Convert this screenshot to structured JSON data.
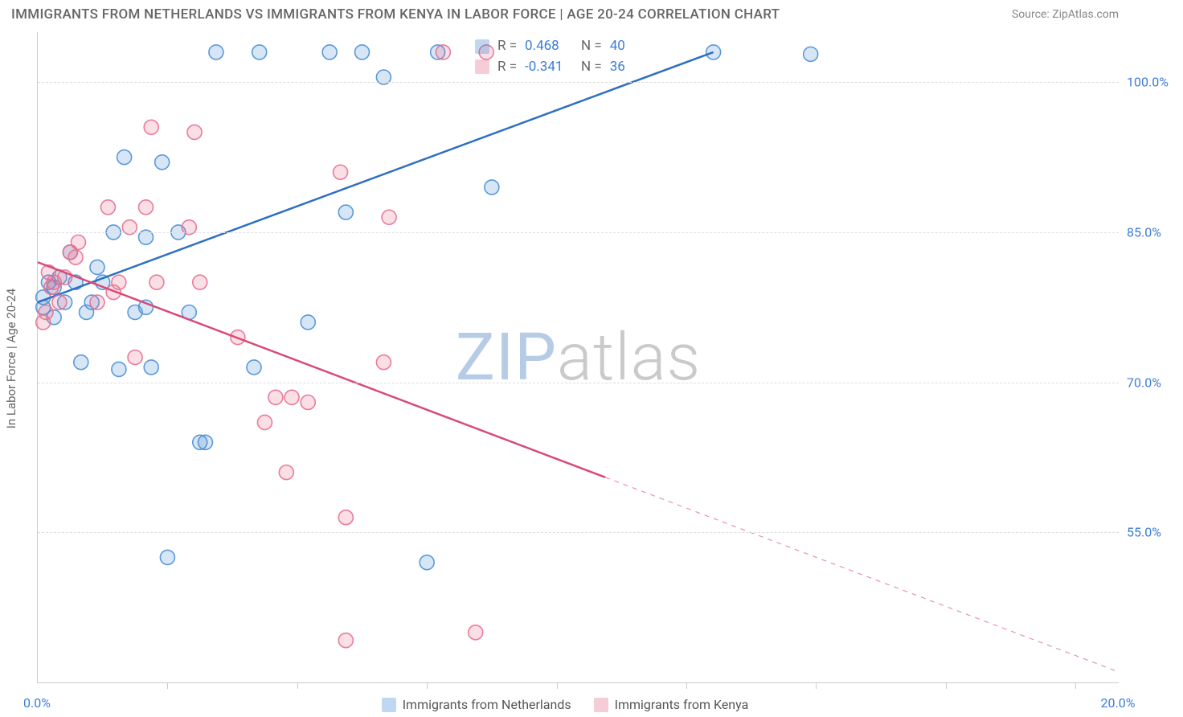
{
  "title": "IMMIGRANTS FROM NETHERLANDS VS IMMIGRANTS FROM KENYA IN LABOR FORCE | AGE 20-24 CORRELATION CHART",
  "source": "Source: ZipAtlas.com",
  "watermark": {
    "part1": "ZIP",
    "part2": "atlas"
  },
  "y_axis_title": "In Labor Force | Age 20-24",
  "chart": {
    "type": "scatter-with-regression",
    "xlim": [
      0.0,
      20.0
    ],
    "ylim": [
      40.0,
      105.0
    ],
    "x_ticks_minor": [
      2.4,
      4.8,
      7.2,
      9.6,
      12.0,
      14.4,
      16.8,
      19.2
    ],
    "x_labels": [
      {
        "value": 0.0,
        "label": "0.0%"
      },
      {
        "value": 20.0,
        "label": "20.0%"
      }
    ],
    "y_gridlines": [
      55.0,
      70.0,
      85.0,
      100.0
    ],
    "y_labels": [
      {
        "value": 55.0,
        "label": "55.0%"
      },
      {
        "value": 70.0,
        "label": "70.0%"
      },
      {
        "value": 85.0,
        "label": "85.0%"
      },
      {
        "value": 100.0,
        "label": "100.0%"
      }
    ],
    "background_color": "#ffffff",
    "grid_color": "#dddddd",
    "axis_color": "#cccccc",
    "tick_label_color": "#3b7dd8",
    "marker_radius": 9,
    "marker_fill_opacity": 0.22,
    "marker_stroke_opacity": 0.9,
    "marker_stroke_width": 1.6,
    "line_width": 2.5,
    "series": [
      {
        "name": "Immigrants from Netherlands",
        "color": "#4a8fd6",
        "line_color": "#2d6fc1",
        "regression": {
          "x1": 0.0,
          "y1": 78.0,
          "x2": 12.5,
          "y2": 103.0,
          "extend_dashed_to_x": null
        },
        "points": [
          [
            0.1,
            77.5
          ],
          [
            0.1,
            78.5
          ],
          [
            0.2,
            80.0
          ],
          [
            0.3,
            76.5
          ],
          [
            0.3,
            79.5
          ],
          [
            0.4,
            80.5
          ],
          [
            0.5,
            78.0
          ],
          [
            0.6,
            83.0
          ],
          [
            0.7,
            80.0
          ],
          [
            0.8,
            72.0
          ],
          [
            0.9,
            77.0
          ],
          [
            1.0,
            78.0
          ],
          [
            1.1,
            81.5
          ],
          [
            1.2,
            80.0
          ],
          [
            1.4,
            85.0
          ],
          [
            1.5,
            71.3
          ],
          [
            1.6,
            92.5
          ],
          [
            1.8,
            77.0
          ],
          [
            2.0,
            77.5
          ],
          [
            2.0,
            84.5
          ],
          [
            2.1,
            71.5
          ],
          [
            2.3,
            92.0
          ],
          [
            2.4,
            52.5
          ],
          [
            2.6,
            85.0
          ],
          [
            2.8,
            77.0
          ],
          [
            3.0,
            64.0
          ],
          [
            3.1,
            64.0
          ],
          [
            3.3,
            103.0
          ],
          [
            4.0,
            71.5
          ],
          [
            4.1,
            103.0
          ],
          [
            5.0,
            76.0
          ],
          [
            5.4,
            103.0
          ],
          [
            5.7,
            87.0
          ],
          [
            6.0,
            103.0
          ],
          [
            6.4,
            100.5
          ],
          [
            7.2,
            52.0
          ],
          [
            7.4,
            103.0
          ],
          [
            8.4,
            89.5
          ],
          [
            12.5,
            103.0
          ],
          [
            14.3,
            102.8
          ]
        ]
      },
      {
        "name": "Immigrants from Kenya",
        "color": "#e86f8f",
        "line_color": "#d84a76",
        "regression": {
          "x1": 0.0,
          "y1": 82.0,
          "x2": 10.5,
          "y2": 60.5,
          "extend_dashed_to_x": 20.0
        },
        "points": [
          [
            0.1,
            76.0
          ],
          [
            0.15,
            77.0
          ],
          [
            0.2,
            81.0
          ],
          [
            0.25,
            79.5
          ],
          [
            0.3,
            80.0
          ],
          [
            0.4,
            78.0
          ],
          [
            0.5,
            80.5
          ],
          [
            0.6,
            83.0
          ],
          [
            0.7,
            82.5
          ],
          [
            0.75,
            84.0
          ],
          [
            1.1,
            78.0
          ],
          [
            1.3,
            87.5
          ],
          [
            1.4,
            79.0
          ],
          [
            1.5,
            80.0
          ],
          [
            1.7,
            85.5
          ],
          [
            1.8,
            72.5
          ],
          [
            2.0,
            87.5
          ],
          [
            2.1,
            95.5
          ],
          [
            2.2,
            80.0
          ],
          [
            2.8,
            85.5
          ],
          [
            2.9,
            95.0
          ],
          [
            3.0,
            80.0
          ],
          [
            3.7,
            74.5
          ],
          [
            4.2,
            66.0
          ],
          [
            4.4,
            68.5
          ],
          [
            4.6,
            61.0
          ],
          [
            4.7,
            68.5
          ],
          [
            5.0,
            68.0
          ],
          [
            5.6,
            91.0
          ],
          [
            5.7,
            56.5
          ],
          [
            5.7,
            44.2
          ],
          [
            6.4,
            72.0
          ],
          [
            6.5,
            86.5
          ],
          [
            7.5,
            103.0
          ],
          [
            8.1,
            45.0
          ],
          [
            8.3,
            103.0
          ]
        ]
      }
    ],
    "stats_box": {
      "rows": [
        {
          "series_index": 0,
          "R": "0.468",
          "N": "40"
        },
        {
          "series_index": 1,
          "R": "-0.341",
          "N": "36"
        }
      ],
      "label_R": "R =",
      "label_N": "N ="
    },
    "legend_swatch_border_width": 1.5,
    "title_fontsize": 17,
    "label_fontsize": 16
  }
}
